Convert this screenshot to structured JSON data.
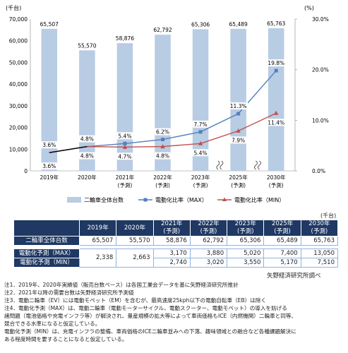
{
  "chart_data": {
    "type": "bar+line",
    "unit_left": "(千台)",
    "unit_right": "(%)",
    "categories": [
      {
        "year": "2019年",
        "sub": ""
      },
      {
        "year": "2020年",
        "sub": ""
      },
      {
        "year": "2021年",
        "sub": "(予測)"
      },
      {
        "year": "2022年",
        "sub": "(予測)"
      },
      {
        "year": "2023年",
        "sub": "(予測)"
      },
      {
        "year": "2025年",
        "sub": "(予測)"
      },
      {
        "year": "2030年",
        "sub": "(予測)"
      }
    ],
    "bar_series": {
      "name": "二輪車全体台数",
      "values": [
        65507,
        55570,
        58876,
        62792,
        65306,
        65489,
        65763
      ],
      "labels": [
        "65,507",
        "55,570",
        "58,876",
        "62,792",
        "65,306",
        "65,489",
        "65,763"
      ],
      "color": "#b8cce4"
    },
    "line_max": {
      "name": "電動化比率（MAX）",
      "values": [
        3.6,
        4.8,
        5.4,
        6.2,
        7.7,
        11.3,
        19.8
      ],
      "labels": [
        "3.6%",
        "4.8%",
        "5.4%",
        "6.2%",
        "7.7%",
        "11.3%",
        "19.8%"
      ],
      "color": "#4f81bd"
    },
    "line_min": {
      "name": "電動化比率（MIN）",
      "values": [
        3.6,
        4.8,
        4.7,
        4.8,
        5.4,
        7.9,
        11.4
      ],
      "labels": [
        "3.6%",
        "4.8%",
        "4.7%",
        "4.8%",
        "5.4%",
        "7.9%",
        "11.4%"
      ],
      "color": "#c0504d"
    },
    "left_axis": {
      "min": 0,
      "max": 70000,
      "ticks": [
        "0",
        "10,000",
        "20,000",
        "30,000",
        "40,000",
        "50,000",
        "60,000",
        "70,000"
      ]
    },
    "right_axis": {
      "min": 0,
      "max": 30,
      "ticks": [
        "0.0%",
        "10.0%",
        "20.0%",
        "30.0%"
      ]
    },
    "axis_break_after": [
      "2023年",
      "2025年"
    ]
  },
  "table": {
    "unit": "(千台)",
    "headers": [
      {
        "year": "2019年",
        "sub": ""
      },
      {
        "year": "2020年",
        "sub": ""
      },
      {
        "year": "2021年",
        "sub": "(予測)"
      },
      {
        "year": "2022年",
        "sub": "(予測)"
      },
      {
        "year": "2023年",
        "sub": "(予測)"
      },
      {
        "year": "2025年",
        "sub": "(予測)"
      },
      {
        "year": "2030年",
        "sub": "(予測)"
      }
    ],
    "total_row": {
      "label": "二輪車全体台数",
      "values": [
        "65,507",
        "55,570",
        "58,876",
        "62,792",
        "65,306",
        "65,489",
        "65,763"
      ]
    },
    "max_row": {
      "label": "電動化予測（MAX）",
      "values": [
        "3,170",
        "3,880",
        "5,020",
        "7,400",
        "13,050"
      ]
    },
    "min_row": {
      "label": "電動化予測（MIN）",
      "values": [
        "2,740",
        "3,020",
        "3,550",
        "5,170",
        "7,510"
      ]
    },
    "merged_values": [
      "2,338",
      "2,663"
    ]
  },
  "source": "矢野経済研究所調べ",
  "notes": [
    "注1．2019年、2020年実績値（販売台数ベース）は各国工業会データを基に矢野経済研究所推計",
    "注2．2021年以降の需要台数は矢野経済研究所予測値",
    "注3．電動二輪車（EV）には電動モペット（EM）を含むが、最高速度25kph以下の電動自転車（EB）は除く",
    "注4．電動化予測（MAX）は、電動二輪車（電動モーターサイクル、電動スクーター、電動モペット）の導入を妨げる",
    "諸問題（電池価格や充電インフラ等）が解決され、量産規模の拡大等によって車両価格もICE（内燃機関）二輪車と同等、",
    "競合できる水準になると仮定している。",
    "電動化予測（MIN）は、充電インフラの整備、車両価格のICE二輪車並みへの下落、趣味領域との融合など各種課題解決に",
    "ある程度時間を要することになると仮定している。"
  ]
}
